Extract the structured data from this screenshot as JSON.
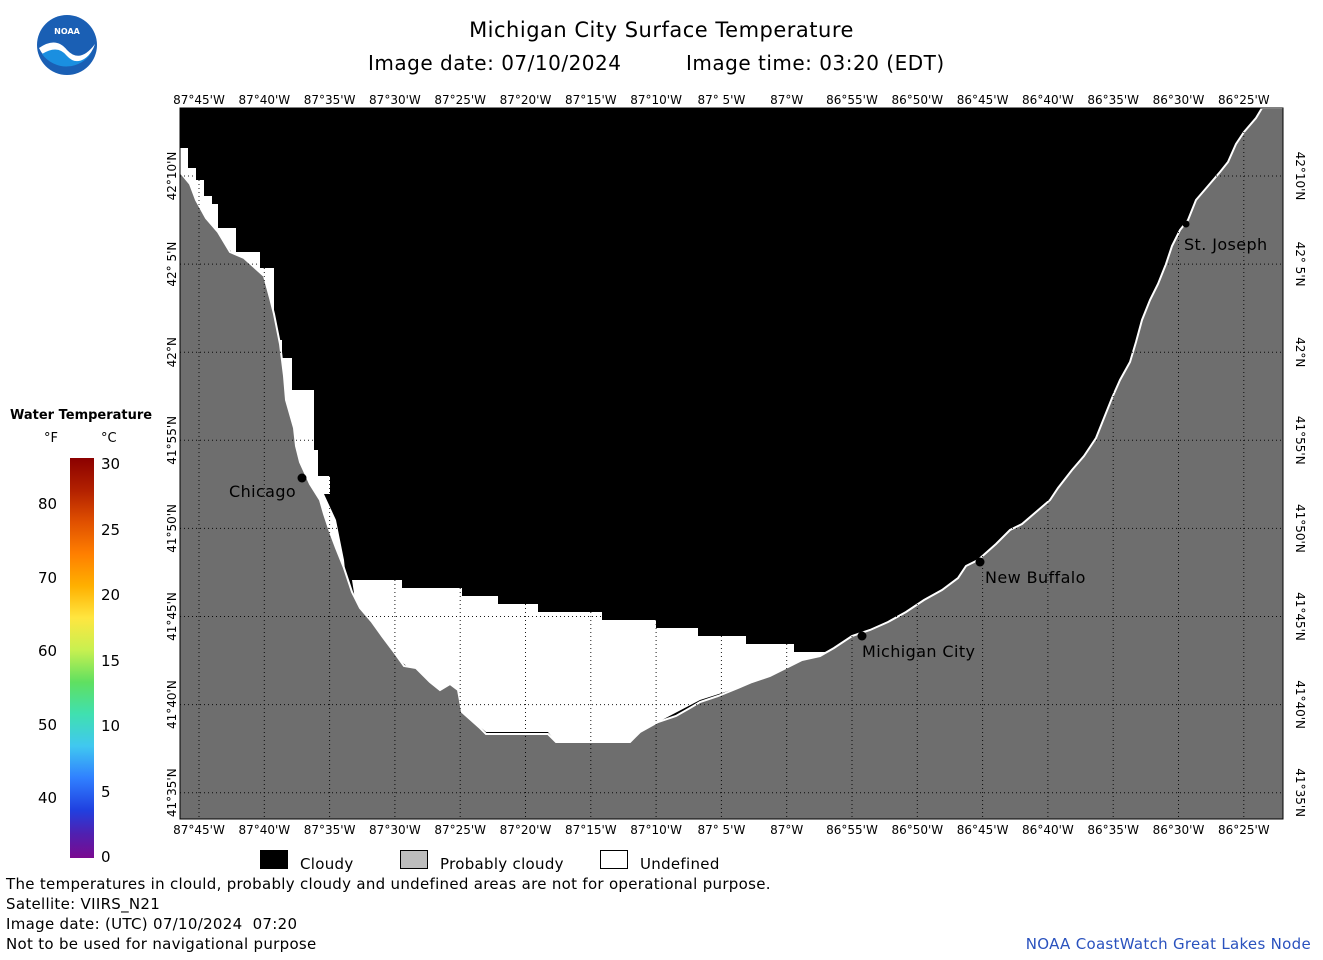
{
  "header": {
    "title": "Michigan City Surface Temperature",
    "image_date": "Image date: 07/10/2024",
    "image_time": "Image time: 03:20 (EDT)",
    "logo_text": "NOAA"
  },
  "map": {
    "lon_labels": [
      "87°45'W",
      "87°40'W",
      "87°35'W",
      "87°30'W",
      "87°25'W",
      "87°20'W",
      "87°15'W",
      "87°10'W",
      "87° 5'W",
      "87°W",
      "86°55'W",
      "86°50'W",
      "86°45'W",
      "86°40'W",
      "86°35'W",
      "86°30'W",
      "86°25'W"
    ],
    "lat_labels": [
      "42°10'N",
      "42° 5'N",
      "42°N",
      "41°55'N",
      "41°50'N",
      "41°45'N",
      "41°40'N",
      "41°35'N"
    ],
    "cities": {
      "chicago": "Chicago",
      "st_joseph": "St. Joseph",
      "new_buffalo": "New Buffalo",
      "michigan_city": "Michigan City"
    },
    "colors": {
      "cloudy": "#000000",
      "probably_cloudy": "#6e6e6e",
      "undefined": "#ffffff"
    }
  },
  "colorbar": {
    "title": "Water Temperature",
    "unit_f": "°F",
    "unit_c": "°C",
    "f_ticks": [
      "80",
      "70",
      "60",
      "50",
      "40"
    ],
    "c_ticks": [
      "30",
      "25",
      "20",
      "15",
      "10",
      "5",
      "0"
    ]
  },
  "legend": {
    "cloudy": "Cloudy",
    "probably_cloudy": "Probably cloudy",
    "undefined": "Undefined"
  },
  "footer": {
    "disclaimer": "The temperatures in clould, probably cloudy and undefined areas are not for operational purpose.",
    "satellite": "Satellite: VIIRS_N21",
    "utc_date": "Image date: (UTC) 07/10/2024  07:20",
    "nav_warning": "Not to be used for navigational purpose",
    "credit": "NOAA CoastWatch Great Lakes Node"
  }
}
